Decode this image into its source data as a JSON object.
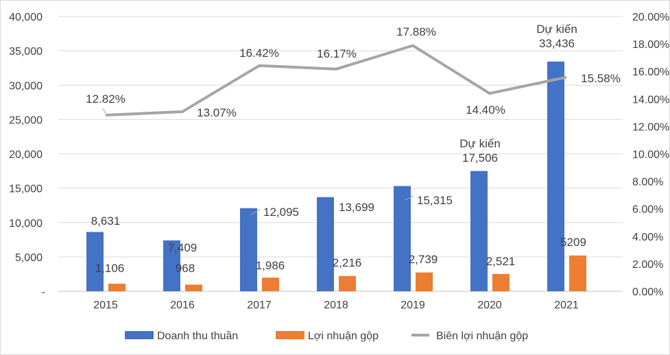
{
  "chart_data": {
    "type": "bar",
    "categories": [
      "2015",
      "2016",
      "2017",
      "2018",
      "2019",
      "2020",
      "2021"
    ],
    "series": [
      {
        "name": "Doanh thu thuần",
        "type": "bar",
        "axis": "left",
        "color": "#4472C4",
        "values": [
          8631,
          7409,
          12095,
          13699,
          15315,
          17506,
          33436
        ],
        "labels": [
          "8,631",
          "7,409",
          "12,095",
          "13,699",
          "15,315",
          "Dự kiến\n17,506",
          "Dự kiến\n33,436"
        ]
      },
      {
        "name": "Lợi nhuận gộp",
        "type": "bar",
        "axis": "left",
        "color": "#ED7D31",
        "values": [
          1106,
          968,
          1986,
          2216,
          2739,
          2521,
          5209
        ],
        "labels": [
          "1,106",
          "968",
          "1,986",
          "2,216",
          "2,739",
          "2,521",
          "5209"
        ]
      },
      {
        "name": "Biên lợi nhuận gộp",
        "type": "line",
        "axis": "right",
        "color": "#A5A5A5",
        "values": [
          12.82,
          13.07,
          16.42,
          16.17,
          17.88,
          14.4,
          15.58
        ],
        "labels": [
          "12.82%",
          "13.07%",
          "16.42%",
          "16.17%",
          "17.88%",
          "14.40%",
          "15.58%"
        ]
      }
    ],
    "left_axis": {
      "range": [
        0,
        40000
      ],
      "ticks": [
        "-",
        "5,000",
        "10,000",
        "15,000",
        "20,000",
        "25,000",
        "30,000",
        "35,000",
        "40,000"
      ]
    },
    "right_axis": {
      "range": [
        0,
        20
      ],
      "ticks": [
        "0.00%",
        "2.00%",
        "4.00%",
        "6.00%",
        "8.00%",
        "10.00%",
        "12.00%",
        "14.00%",
        "16.00%",
        "18.00%",
        "20.00%"
      ]
    },
    "grid": true,
    "legend": "bottom"
  }
}
